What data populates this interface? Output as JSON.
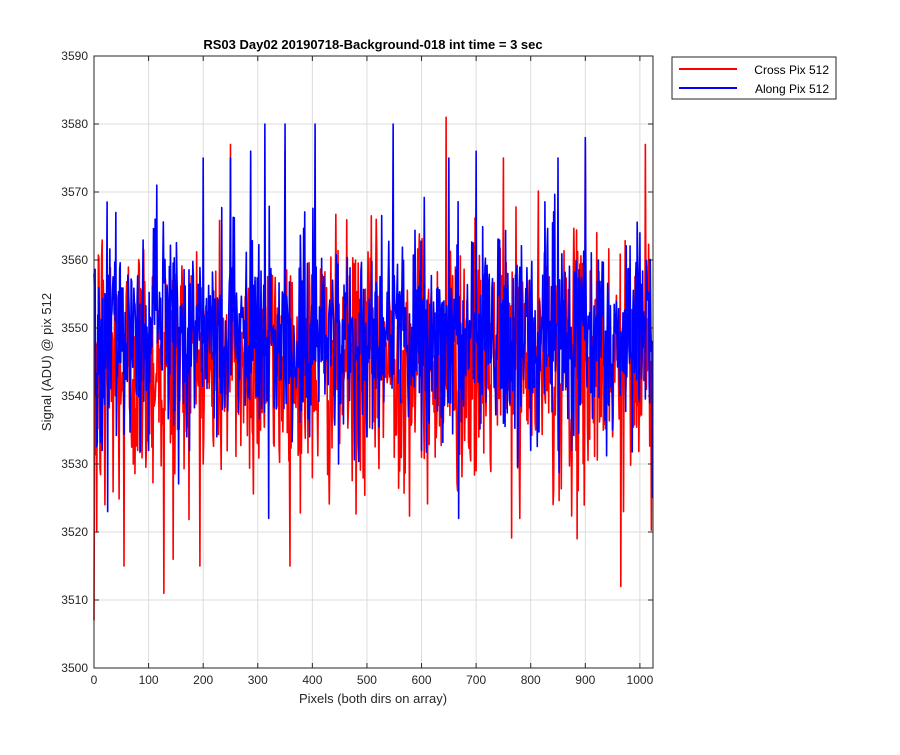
{
  "chart_data": {
    "type": "line",
    "title": "RS03 Day02 20190718-Background-018 int time = 3 sec",
    "xlabel": "Pixels (both dirs on array)",
    "ylabel": "Signal (ADU) @ pix 512",
    "xlim": [
      0,
      1024
    ],
    "ylim": [
      3500,
      3590
    ],
    "xticks": [
      0,
      100,
      200,
      300,
      400,
      500,
      600,
      700,
      800,
      900,
      1000
    ],
    "yticks": [
      3500,
      3510,
      3520,
      3530,
      3540,
      3550,
      3560,
      3570,
      3580,
      3590
    ],
    "grid": true,
    "legend_position": "top-right",
    "noise_note_points": 1024,
    "series": [
      {
        "name": "Cross Pix 512",
        "color": "#ff0000",
        "anchors_x": [
          0,
          2,
          5,
          20,
          55,
          80,
          128,
          145,
          200,
          250,
          300,
          350,
          400,
          450,
          500,
          550,
          600,
          645,
          700,
          750,
          780,
          800,
          850,
          885,
          900,
          950,
          965,
          970,
          1000,
          1010,
          1023
        ],
        "anchors_y": [
          3507,
          3548,
          3520,
          3524,
          3515,
          3532,
          3511,
          3516,
          3530,
          3577,
          3533,
          3576,
          3528,
          3533,
          3534,
          3531,
          3531,
          3581,
          3529,
          3575,
          3522,
          3538,
          3532,
          3519,
          3577,
          3534,
          3512,
          3523,
          3537,
          3577,
          3528
        ],
        "mean": 3545,
        "spread": 9
      },
      {
        "name": "Along Pix 512",
        "color": "#0000ff",
        "anchors_x": [
          0,
          15,
          25,
          40,
          100,
          115,
          175,
          200,
          225,
          250,
          287,
          313,
          320,
          350,
          395,
          405,
          448,
          500,
          548,
          600,
          650,
          668,
          700,
          750,
          800,
          850,
          875,
          900,
          950,
          1000,
          1023
        ],
        "anchors_y": [
          3558,
          3532,
          3523,
          3567,
          3532,
          3571,
          3532,
          3575,
          3534,
          3575,
          3576,
          3580,
          3522,
          3580,
          3534,
          3580,
          3530,
          3534,
          3580,
          3532,
          3575,
          3522,
          3576,
          3536,
          3532,
          3575,
          3532,
          3578,
          3535,
          3564,
          3525
        ],
        "mean": 3549,
        "spread": 7
      }
    ]
  }
}
